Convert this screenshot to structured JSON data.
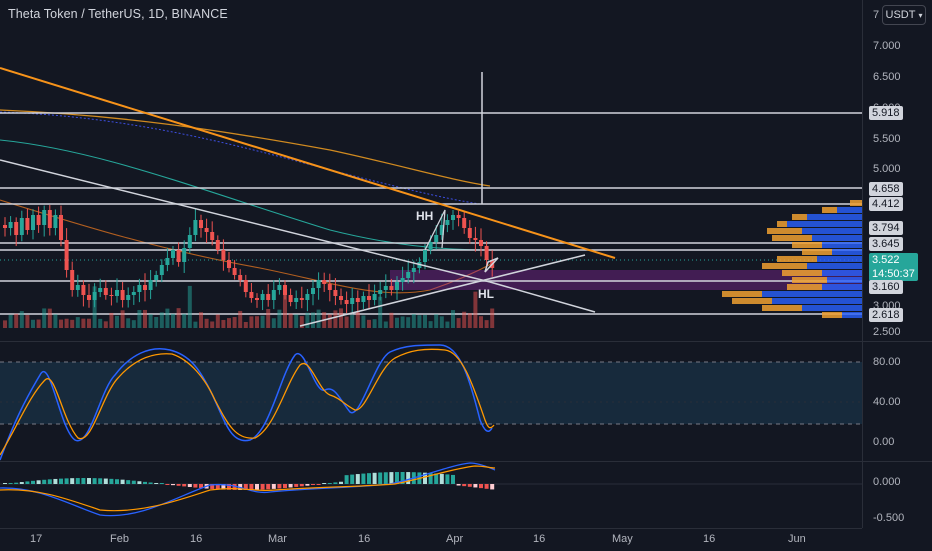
{
  "header": {
    "title": "Theta Token / TetherUS, 1D, BINANCE",
    "currency": "USDT",
    "clipped_price_top": "7"
  },
  "price_axis": {
    "ticks": [
      "7.000",
      "6.500",
      "5.500",
      "5.000",
      "3.000",
      "2.500"
    ],
    "level_labels": [
      "5.918",
      "4.658",
      "4.412",
      "3.794",
      "3.645",
      "3.160",
      "2.618"
    ],
    "current_price": "3.522",
    "countdown": "14:50:37",
    "hidden_tick": "6.000"
  },
  "rsi_axis": {
    "ticks": [
      "80.00",
      "40.00",
      "0.00"
    ]
  },
  "macd_axis": {
    "ticks": [
      "0.000",
      "-0.500"
    ]
  },
  "time_axis": {
    "labels": [
      "17",
      "Feb",
      "16",
      "Mar",
      "16",
      "Apr",
      "16",
      "May",
      "16",
      "Jun"
    ]
  },
  "annotations": {
    "higher_high": "HH",
    "higher_low": "HL"
  },
  "colors": {
    "background": "#131722",
    "up_candle": "#26a69a",
    "down_candle": "#ef5350",
    "trendline_orange": "#f7931a",
    "rsi_blue": "#2962ff",
    "rsi_orange": "#ff9800",
    "volume_profile_blue": "#2962ff",
    "volume_profile_orange": "#f0a030"
  }
}
